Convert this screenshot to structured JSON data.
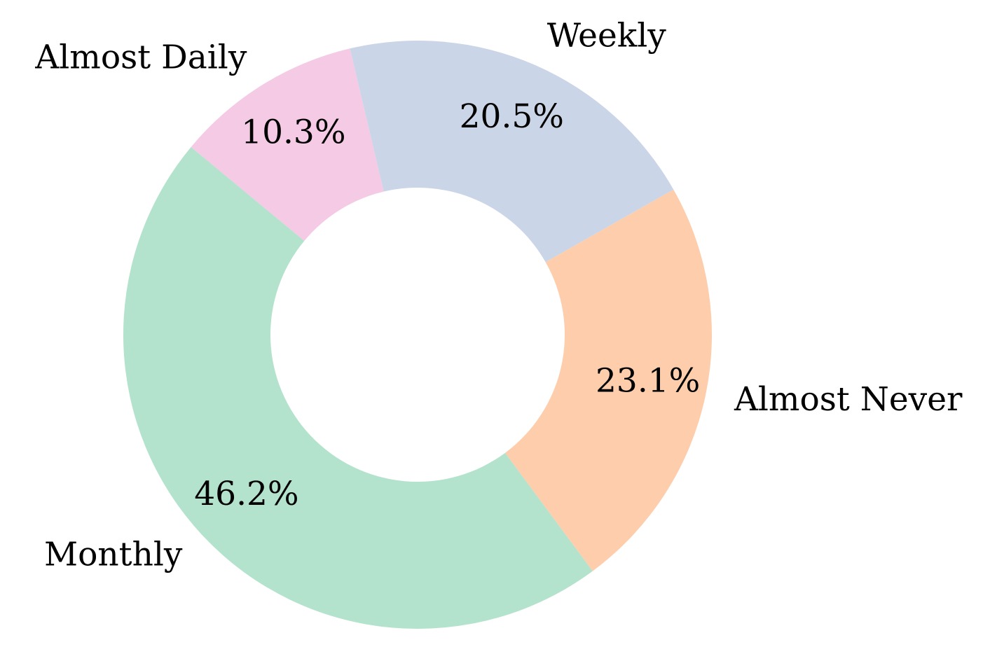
{
  "chart_data": {
    "type": "donut",
    "categories": [
      "Weekly",
      "Almost Never",
      "Monthly",
      "Almost Daily"
    ],
    "values": [
      20.5,
      23.1,
      46.2,
      10.3
    ],
    "value_labels": [
      "20.5%",
      "23.1%",
      "46.2%",
      "10.3%"
    ],
    "colors": [
      "#cbd5e8",
      "#fdcdac",
      "#b3e2cd",
      "#f4cae4"
    ]
  }
}
